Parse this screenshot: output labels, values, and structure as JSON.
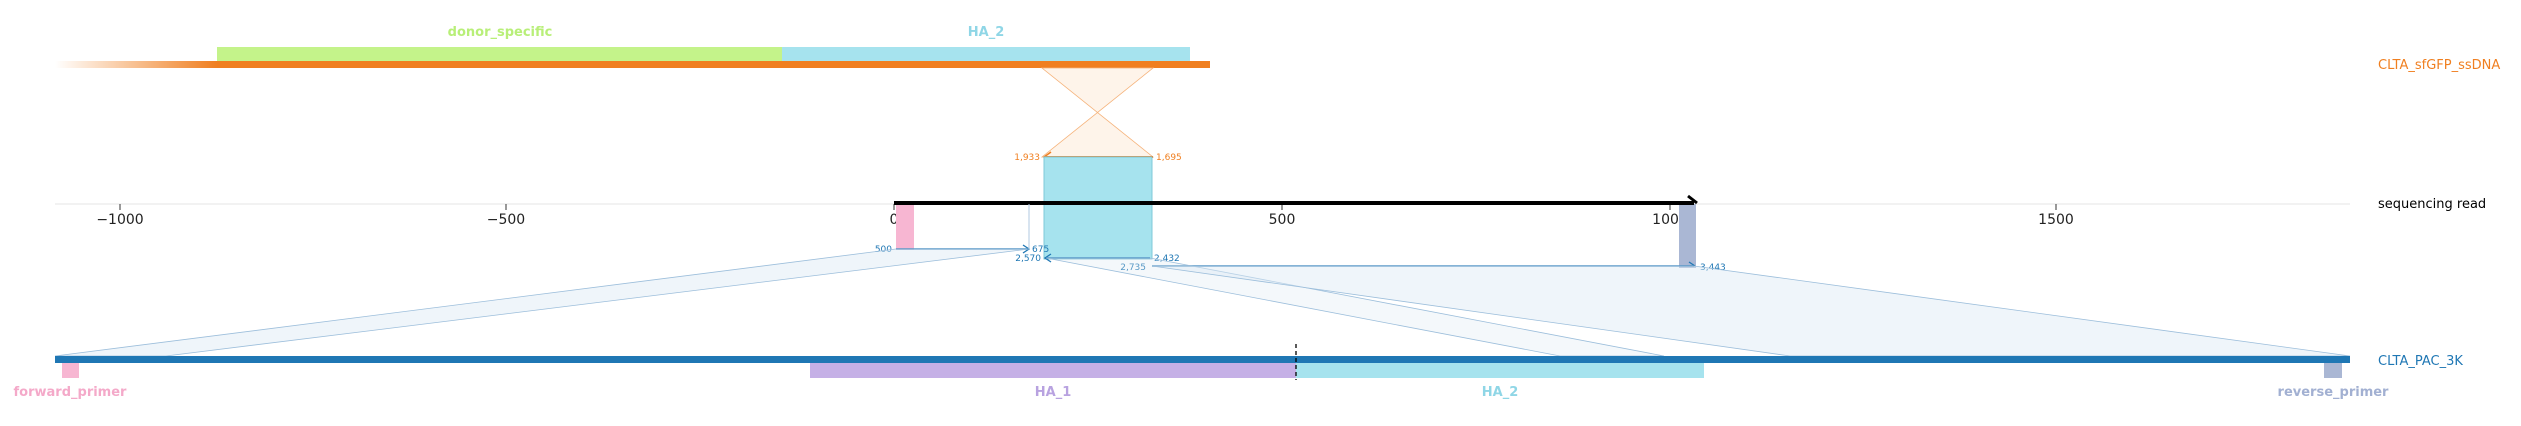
{
  "axis": {
    "ticks": [
      "−1000",
      "−500",
      "0",
      "500",
      "1000",
      "1500"
    ]
  },
  "top_reference": {
    "name": "CLTA_sfGFP_ssDNA",
    "features": {
      "donor_specific": "donor_specific",
      "ha2": "HA_2"
    },
    "coords": {
      "left": "1,933",
      "right": "1,695"
    }
  },
  "read": {
    "name": "sequencing read"
  },
  "bottom_reference": {
    "name": "CLTA_PAC_3K",
    "features": {
      "forward_primer": "forward_primer",
      "ha1": "HA_1",
      "ha2": "HA_2",
      "reverse_primer": "reverse_primer"
    },
    "coords": {
      "a1": "500",
      "a2": "675",
      "b1": "2,570",
      "b2": "2,432",
      "c1": "2,735",
      "c2": "3,443"
    }
  },
  "colors": {
    "orange": "#f07f20",
    "blue": "#1f77b4",
    "cyan": "#a6e3ee",
    "lime": "#c4f38a",
    "pink": "#f7b6d2",
    "lavender": "#c5b0e6",
    "steel": "#aab7d4"
  }
}
